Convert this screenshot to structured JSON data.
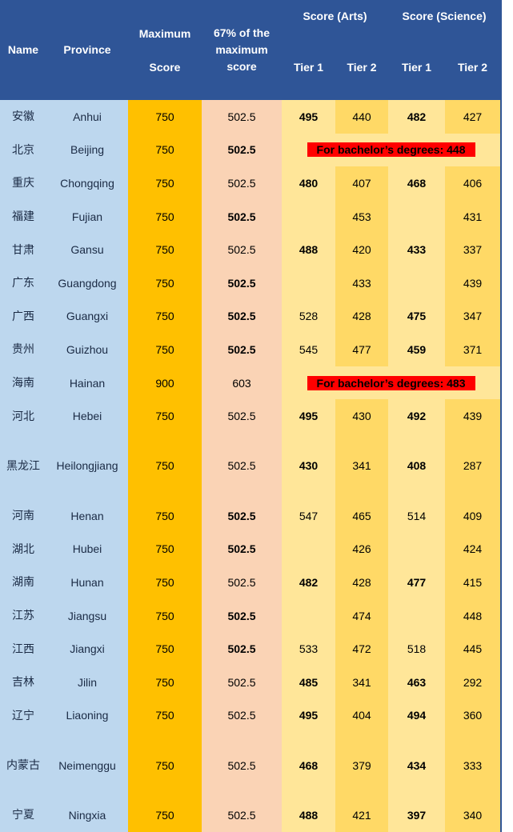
{
  "header": {
    "name": "Name",
    "province": "Province",
    "max_score": "Maximum Score",
    "pct": "67% of the maximum score",
    "arts": "Score (Arts)",
    "science": "Score (Science)",
    "tier1": "Tier 1",
    "tier2": "Tier 2"
  },
  "colors": {
    "header": "#2F5597",
    "name": "#BDD7EE",
    "max": "#FFC000",
    "pct": "#FAD3B5",
    "tier1": "#FFE699",
    "tier2": "#FFD966",
    "banner": "#FF0000"
  },
  "rows": [
    {
      "name": "安徽",
      "province": "Anhui",
      "max": "750",
      "pct": "502.5",
      "pct_bold": false,
      "a1": "495",
      "a1_bold": true,
      "a2": "440",
      "s1": "482",
      "s1_bold": true,
      "s2": "427"
    },
    {
      "name": "北京",
      "province": "Beijing",
      "max": "750",
      "pct": "502.5",
      "pct_bold": true,
      "banner": "For bachelor’s degrees: 448"
    },
    {
      "name": "重庆",
      "province": "Chongqing",
      "max": "750",
      "pct": "502.5",
      "pct_bold": false,
      "a1": "480",
      "a1_bold": true,
      "a2": "407",
      "s1": "468",
      "s1_bold": true,
      "s2": "406"
    },
    {
      "name": "福建",
      "province": "Fujian",
      "max": "750",
      "pct": "502.5",
      "pct_bold": true,
      "a1": "",
      "a2": "453",
      "s1": "",
      "s2": "431"
    },
    {
      "name": "甘肃",
      "province": "Gansu",
      "max": "750",
      "pct": "502.5",
      "pct_bold": false,
      "a1": "488",
      "a1_bold": true,
      "a2": "420",
      "s1": "433",
      "s1_bold": true,
      "s2": "337"
    },
    {
      "name": "广东",
      "province": "Guangdong",
      "max": "750",
      "pct": "502.5",
      "pct_bold": true,
      "a1": "",
      "a2": "433",
      "s1": "",
      "s2": "439"
    },
    {
      "name": "广西",
      "province": "Guangxi",
      "max": "750",
      "pct": "502.5",
      "pct_bold": true,
      "a1": "528",
      "a1_bold": false,
      "a2": "428",
      "s1": "475",
      "s1_bold": true,
      "s2": "347"
    },
    {
      "name": "贵州",
      "province": "Guizhou",
      "max": "750",
      "pct": "502.5",
      "pct_bold": true,
      "a1": "545",
      "a1_bold": false,
      "a2": "477",
      "s1": "459",
      "s1_bold": true,
      "s2": "371"
    },
    {
      "name": "海南",
      "province": "Hainan",
      "max": "900",
      "pct": "603",
      "pct_bold": false,
      "banner": "For bachelor’s degrees: 483"
    },
    {
      "name": "河北",
      "province": "Hebei",
      "max": "750",
      "pct": "502.5",
      "pct_bold": false,
      "a1": "495",
      "a1_bold": true,
      "a2": "430",
      "s1": "492",
      "s1_bold": true,
      "s2": "439"
    },
    {
      "name": "黑龙江",
      "province": "Heilongjiang",
      "max": "750",
      "pct": "502.5",
      "pct_bold": false,
      "a1": "430",
      "a1_bold": true,
      "a2": "341",
      "s1": "408",
      "s1_bold": true,
      "s2": "287",
      "tall": true
    },
    {
      "name": "河南",
      "province": "Henan",
      "max": "750",
      "pct": "502.5",
      "pct_bold": true,
      "a1": "547",
      "a1_bold": false,
      "a2": "465",
      "s1": "514",
      "s1_bold": false,
      "s2": "409"
    },
    {
      "name": "湖北",
      "province": "Hubei",
      "max": "750",
      "pct": "502.5",
      "pct_bold": true,
      "a1": "",
      "a2": "426",
      "s1": "",
      "s2": "424"
    },
    {
      "name": "湖南",
      "province": "Hunan",
      "max": "750",
      "pct": "502.5",
      "pct_bold": false,
      "a1": "482",
      "a1_bold": true,
      "a2": "428",
      "s1": "477",
      "s1_bold": true,
      "s2": "415"
    },
    {
      "name": "江苏",
      "province": "Jiangsu",
      "max": "750",
      "pct": "502.5",
      "pct_bold": true,
      "a1": "",
      "a2": "474",
      "s1": "",
      "s2": "448"
    },
    {
      "name": "江西",
      "province": "Jiangxi",
      "max": "750",
      "pct": "502.5",
      "pct_bold": true,
      "a1": "533",
      "a1_bold": false,
      "a2": "472",
      "s1": "518",
      "s1_bold": false,
      "s2": "445"
    },
    {
      "name": "吉林",
      "province": "Jilin",
      "max": "750",
      "pct": "502.5",
      "pct_bold": false,
      "a1": "485",
      "a1_bold": true,
      "a2": "341",
      "s1": "463",
      "s1_bold": true,
      "s2": "292"
    },
    {
      "name": "辽宁",
      "province": "Liaoning",
      "max": "750",
      "pct": "502.5",
      "pct_bold": false,
      "a1": "495",
      "a1_bold": true,
      "a2": "404",
      "s1": "494",
      "s1_bold": true,
      "s2": "360"
    },
    {
      "name": "内蒙古",
      "province": "Neimenggu",
      "max": "750",
      "pct": "502.5",
      "pct_bold": false,
      "a1": "468",
      "a1_bold": true,
      "a2": "379",
      "s1": "434",
      "s1_bold": true,
      "s2": "333",
      "tall": true
    },
    {
      "name": "宁夏",
      "province": "Ningxia",
      "max": "750",
      "pct": "502.5",
      "pct_bold": false,
      "a1": "488",
      "a1_bold": true,
      "a2": "421",
      "s1": "397",
      "s1_bold": true,
      "s2": "340"
    }
  ]
}
